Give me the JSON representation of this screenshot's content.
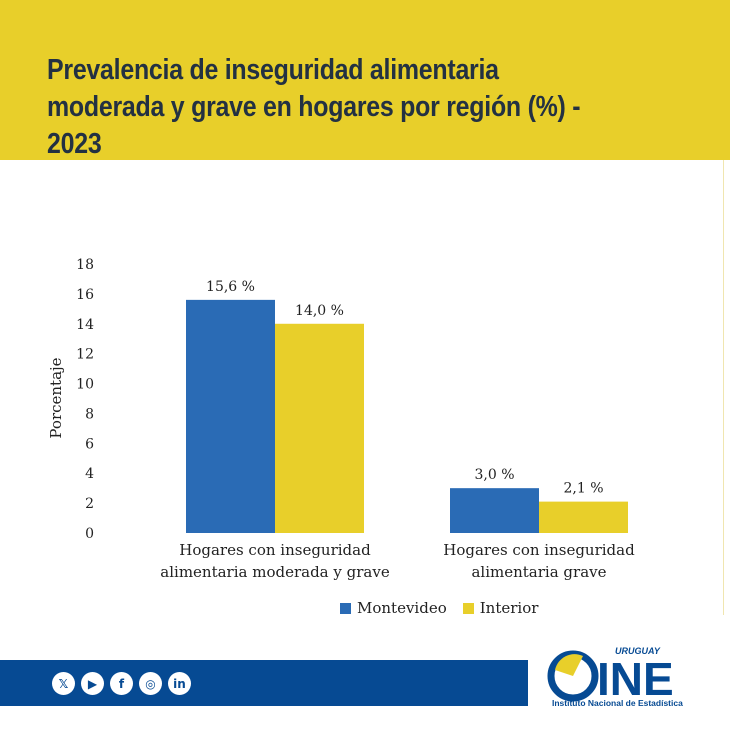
{
  "header": {
    "title_line1": "Prevalencia de inseguridad alimentaria",
    "title_line2": "moderada y grave en hogares por región (%) - 2023"
  },
  "chart_data": {
    "type": "bar",
    "title": "Prevalencia de inseguridad alimentaria moderada y grave en hogares por región (%) - 2023",
    "categories": [
      [
        "Hogares con inseguridad",
        "alimentaria moderada y grave"
      ],
      [
        "Hogares con inseguridad",
        "alimentaria grave"
      ]
    ],
    "series": [
      {
        "name": "Montevideo",
        "values": [
          15.6,
          3.0
        ],
        "labels": [
          "15,6 %",
          "3,0 %"
        ],
        "color": "#2a6bb5"
      },
      {
        "name": "Interior",
        "values": [
          14.0,
          2.1
        ],
        "labels": [
          "14,0 %",
          "2,1 %"
        ],
        "color": "#e8cf2a"
      }
    ],
    "ylabel": "Porcentaje",
    "ylim": [
      0,
      18
    ],
    "yticks": [
      "0",
      "2",
      "4",
      "6",
      "8",
      "10",
      "12",
      "14",
      "16",
      "18"
    ],
    "grid": false,
    "legend_position": "bottom-right"
  },
  "footer": {
    "social_icons": [
      "x-icon",
      "youtube-icon",
      "facebook-icon",
      "instagram-icon",
      "linkedin-icon"
    ],
    "social_glyphs": [
      "𝕏",
      "▶",
      "f",
      "◎",
      "in"
    ],
    "logo_top": "URUGUAY",
    "logo_word": "INE",
    "logo_caption": "Instituto Nacional de Estadística"
  }
}
